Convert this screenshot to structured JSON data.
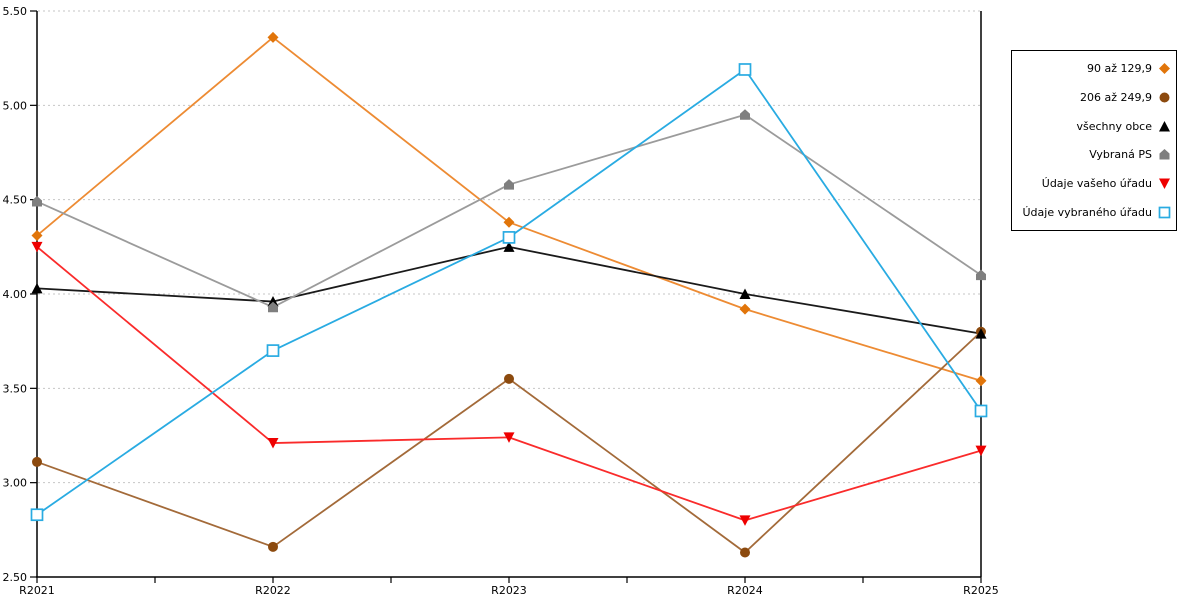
{
  "chart_data": {
    "type": "line",
    "title": "",
    "categories": [
      "R2021",
      "R2022",
      "R2023",
      "R2024",
      "R2025"
    ],
    "ylim": [
      2.5,
      5.5
    ],
    "yticks": [
      {
        "value": 2.5,
        "label": "2.50"
      },
      {
        "value": 3.0,
        "label": "3.00"
      },
      {
        "value": 3.5,
        "label": "3.50"
      },
      {
        "value": 4.0,
        "label": "4.00"
      },
      {
        "value": 4.5,
        "label": "4.50"
      },
      {
        "value": 5.0,
        "label": "5.00"
      },
      {
        "value": 5.5,
        "label": "5.50"
      }
    ],
    "grid": "horizontal-dashed",
    "legend_position": "right",
    "series": [
      {
        "name": "90 až 129,9",
        "marker": "diamond",
        "line_color": "#ED8B33",
        "marker_color": "#E1750A",
        "values": [
          4.31,
          5.36,
          4.38,
          3.92,
          3.54
        ]
      },
      {
        "name": "206 až 249,9",
        "marker": "circle",
        "line_color": "#A36A39",
        "marker_color": "#8C4A0E",
        "values": [
          3.11,
          2.66,
          3.55,
          2.63,
          3.8
        ]
      },
      {
        "name": "všechny obce",
        "marker": "triangle-up",
        "line_color": "#1A1A1A",
        "marker_color": "#000000",
        "values": [
          4.03,
          3.96,
          4.25,
          4.0,
          3.79
        ]
      },
      {
        "name": "Vybraná PS",
        "marker": "pentagon",
        "line_color": "#9B9B9B",
        "marker_color": "#7F7F7F",
        "values": [
          4.49,
          3.93,
          4.58,
          4.95,
          4.1
        ]
      },
      {
        "name": "Údaje vašeho úřadu",
        "marker": "triangle-down",
        "line_color": "#FA2B2B",
        "marker_color": "#EE0000",
        "values": [
          4.25,
          3.21,
          3.24,
          2.8,
          3.17
        ]
      },
      {
        "name": "Údaje vybraného úřadu",
        "marker": "square-open",
        "line_color": "#29ABE2",
        "marker_color": "#29ABE2",
        "values": [
          2.83,
          3.7,
          4.3,
          5.19,
          3.38
        ]
      }
    ]
  },
  "colors": {
    "background": "#FFFFFF",
    "grid": "#C6C6C6",
    "axis": "#000000",
    "text": "#000000",
    "legend_border": "#000000"
  }
}
